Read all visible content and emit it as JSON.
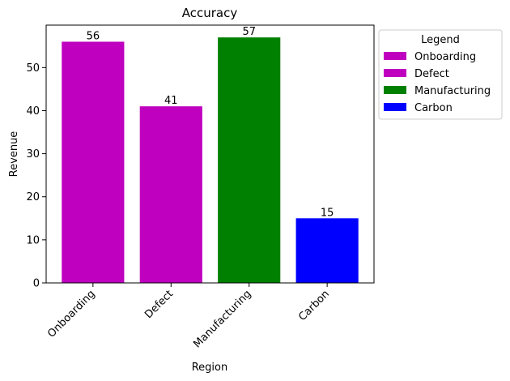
{
  "chart_data": {
    "type": "bar",
    "title": "Accuracy",
    "xlabel": "Region",
    "ylabel": "Revenue",
    "categories": [
      "Onboarding",
      "Defect",
      "Manufacturing",
      "Carbon"
    ],
    "values": [
      56,
      41,
      57,
      15
    ],
    "colors": [
      "#bf00bf",
      "#bf00bf",
      "#008000",
      "#0000ff"
    ],
    "ylim": [
      0,
      59.85
    ],
    "yticks": [
      0,
      10,
      20,
      30,
      40,
      50
    ],
    "grid": false,
    "legend": {
      "title": "Legend",
      "placement": "outside-top-right",
      "entries": [
        {
          "label": "Onboarding",
          "color": "#bf00bf"
        },
        {
          "label": "Defect",
          "color": "#bf00bf"
        },
        {
          "label": "Manufacturing",
          "color": "#008000"
        },
        {
          "label": "Carbon",
          "color": "#0000ff"
        }
      ]
    }
  }
}
